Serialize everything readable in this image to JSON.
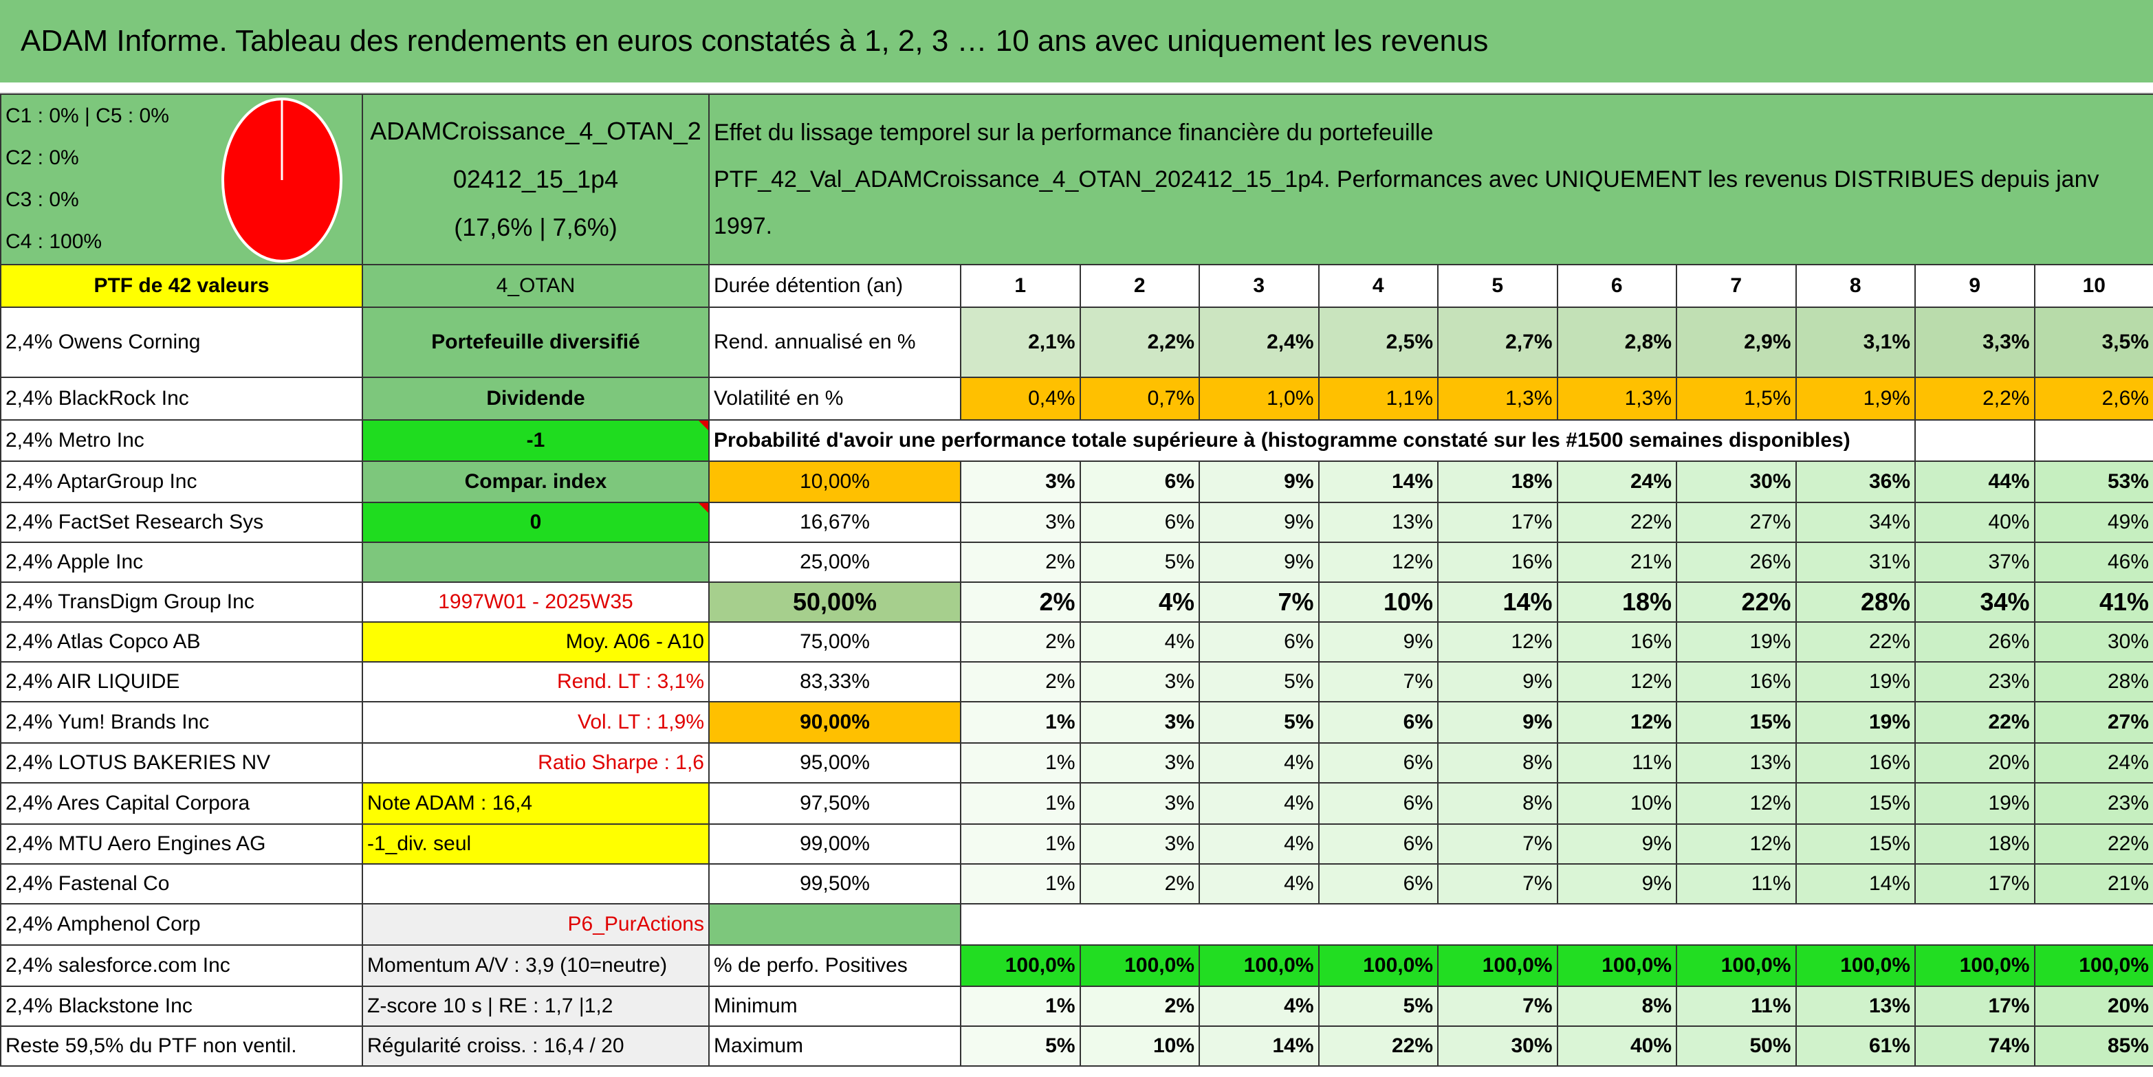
{
  "title": "ADAM Informe. Tableau des rendements en euros constatés à 1, 2, 3 … 10 ans avec uniquement les revenus",
  "composition": [
    "C1 : 0% | C5 : 0%",
    "C2 : 0%",
    "C3 : 0%",
    "C4 : 100%"
  ],
  "portfolio": {
    "name": "ADAMCroissance_4_OTAN_202412_15_1p4",
    "stats": "(17,6% | 7,6%)"
  },
  "description": [
    "Effet du lissage temporel sur la performance financière du portefeuille",
    "PTF_42_Val_ADAMCroissance_4_OTAN_202412_15_1p4. Performances avec UNIQUEMENT les revenus DISTRIBUES depuis janv 1997."
  ],
  "left_column": [
    "PTF de 42 valeurs",
    "2,4% Owens Corning",
    "2,4% BlackRock Inc",
    "2,4% Metro Inc",
    "2,4% AptarGroup Inc",
    "2,4% FactSet Research Sys",
    "2,4% Apple Inc",
    "2,4% TransDigm Group Inc",
    "2,4% Atlas Copco AB",
    "2,4% AIR LIQUIDE",
    "2,4% Yum! Brands Inc",
    "2,4% LOTUS BAKERIES NV",
    "2,4% Ares Capital Corpora",
    "2,4% MTU Aero Engines AG",
    "2,4% Fastenal Co",
    "2,4% Amphenol Corp",
    "2,4% salesforce.com Inc",
    "2,4% Blackstone Inc",
    "Reste 59,5% du PTF non ventil."
  ],
  "middle_column": [
    "4_OTAN",
    "Portefeuille diversifié",
    "Dividende",
    "-1",
    "Compar. index",
    "0",
    null,
    "1997W01 - 2025W35",
    "Moy. A06 - A10",
    "Rend. LT : 3,1%",
    "Vol. LT : 1,9%",
    "Ratio Sharpe : 1,6",
    "Note ADAM : 16,4",
    "-1_div. seul",
    null,
    "P6_PurActions",
    "Momentum A/V : 3,9 (10=neutre)",
    "Z-score 10 s | RE : 1,7 |1,2",
    "Régularité croiss. : 16,4 / 20"
  ],
  "holding": {
    "label": "Durée détention (an)",
    "periods": [
      "1",
      "2",
      "3",
      "4",
      "5",
      "6",
      "7",
      "8",
      "9",
      "10"
    ]
  },
  "returns": {
    "label": "Rend. annualisé en %",
    "values": [
      "2,1%",
      "2,2%",
      "2,4%",
      "2,5%",
      "2,7%",
      "2,8%",
      "2,9%",
      "3,1%",
      "3,3%",
      "3,5%"
    ]
  },
  "volatility": {
    "label": "Volatilité en %",
    "values": [
      "0,4%",
      "0,7%",
      "1,0%",
      "1,1%",
      "1,3%",
      "1,3%",
      "1,5%",
      "1,9%",
      "2,2%",
      "2,6%"
    ]
  },
  "probability": {
    "title": "Probabilité d'avoir une performance totale supérieure à (histogramme constaté sur les #1500 semaines disponibles)",
    "rows": [
      {
        "level": "10,00%",
        "values": [
          "3%",
          "6%",
          "9%",
          "14%",
          "18%",
          "24%",
          "30%",
          "36%",
          "44%",
          "53%"
        ]
      },
      {
        "level": "16,67%",
        "values": [
          "3%",
          "6%",
          "9%",
          "13%",
          "17%",
          "22%",
          "27%",
          "34%",
          "40%",
          "49%"
        ]
      },
      {
        "level": "25,00%",
        "values": [
          "2%",
          "5%",
          "9%",
          "12%",
          "16%",
          "21%",
          "26%",
          "31%",
          "37%",
          "46%"
        ]
      },
      {
        "level": "50,00%",
        "values": [
          "2%",
          "4%",
          "7%",
          "10%",
          "14%",
          "18%",
          "22%",
          "28%",
          "34%",
          "41%"
        ]
      },
      {
        "level": "75,00%",
        "values": [
          "2%",
          "4%",
          "6%",
          "9%",
          "12%",
          "16%",
          "19%",
          "22%",
          "26%",
          "30%"
        ]
      },
      {
        "level": "83,33%",
        "values": [
          "2%",
          "3%",
          "5%",
          "7%",
          "9%",
          "12%",
          "16%",
          "19%",
          "23%",
          "28%"
        ]
      },
      {
        "level": "90,00%",
        "values": [
          "1%",
          "3%",
          "5%",
          "6%",
          "9%",
          "12%",
          "15%",
          "19%",
          "22%",
          "27%"
        ]
      },
      {
        "level": "95,00%",
        "values": [
          "1%",
          "3%",
          "4%",
          "6%",
          "8%",
          "11%",
          "13%",
          "16%",
          "20%",
          "24%"
        ]
      },
      {
        "level": "97,50%",
        "values": [
          "1%",
          "3%",
          "4%",
          "6%",
          "8%",
          "10%",
          "12%",
          "15%",
          "19%",
          "23%"
        ]
      },
      {
        "level": "99,00%",
        "values": [
          "1%",
          "3%",
          "4%",
          "6%",
          "7%",
          "9%",
          "12%",
          "15%",
          "18%",
          "22%"
        ]
      },
      {
        "level": "99,50%",
        "values": [
          "1%",
          "2%",
          "4%",
          "6%",
          "7%",
          "9%",
          "11%",
          "14%",
          "17%",
          "21%"
        ]
      }
    ]
  },
  "stats": [
    {
      "label": "% de perfo. Positives",
      "values": [
        "100,0%",
        "100,0%",
        "100,0%",
        "100,0%",
        "100,0%",
        "100,0%",
        "100,0%",
        "100,0%",
        "100,0%",
        "100,0%"
      ]
    },
    {
      "label": "Minimum",
      "values": [
        "1%",
        "2%",
        "4%",
        "5%",
        "7%",
        "8%",
        "11%",
        "13%",
        "17%",
        "20%"
      ]
    },
    {
      "label": "Maximum",
      "values": [
        "5%",
        "10%",
        "14%",
        "22%",
        "30%",
        "40%",
        "50%",
        "61%",
        "74%",
        "85%"
      ]
    }
  ]
}
